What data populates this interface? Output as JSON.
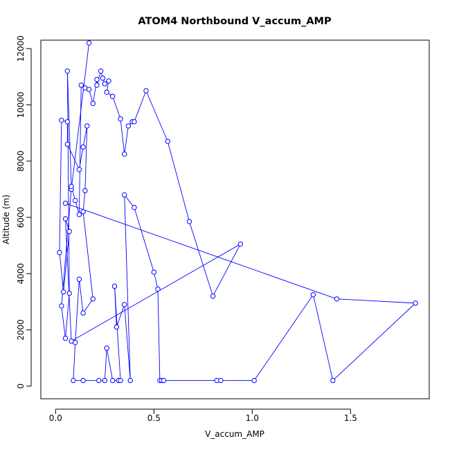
{
  "chart_data": {
    "type": "line",
    "title": "ATOM4 Northbound V_accum_AMP",
    "xlabel": "V_accum_AMP",
    "ylabel": "Altitude (m)",
    "xlim": [
      -0.075,
      1.9
    ],
    "ylim": [
      -450,
      12300
    ],
    "xticks": [
      0.0,
      0.5,
      1.0,
      1.5
    ],
    "xtick_labels": [
      "0.0",
      "0.5",
      "1.0",
      "1.5"
    ],
    "yticks": [
      0,
      2000,
      4000,
      6000,
      8000,
      10000,
      12000
    ],
    "ytick_labels": [
      "0",
      "2000",
      "4000",
      "6000",
      "8000",
      "10000",
      "12000"
    ],
    "marker": "open-circle",
    "series": [
      {
        "color": "#0000ff",
        "points": [
          [
            0.17,
            12200
          ],
          [
            0.08,
            7000
          ],
          [
            0.03,
            2850
          ],
          [
            0.05,
            1700
          ],
          [
            0.07,
            3300
          ],
          [
            0.06,
            11200
          ],
          [
            0.08,
            7100
          ],
          [
            0.1,
            6600
          ],
          [
            0.12,
            6100
          ],
          [
            0.13,
            10700
          ],
          [
            0.15,
            10600
          ],
          [
            0.17,
            10550
          ],
          [
            0.19,
            10050
          ],
          [
            0.21,
            10900
          ],
          [
            0.21,
            10700
          ],
          [
            0.23,
            11200
          ],
          [
            0.24,
            10950
          ],
          [
            0.25,
            10750
          ],
          [
            0.27,
            10850
          ],
          [
            0.26,
            10450
          ],
          [
            0.29,
            10300
          ],
          [
            0.33,
            9500
          ],
          [
            0.35,
            8250
          ],
          [
            0.37,
            9250
          ],
          [
            0.39,
            9400
          ],
          [
            0.4,
            9400
          ],
          [
            0.46,
            10500
          ],
          [
            0.57,
            8700
          ],
          [
            0.68,
            5850
          ],
          [
            0.8,
            3200
          ],
          [
            0.94,
            5050
          ],
          [
            0.08,
            1600
          ],
          [
            0.05,
            5950
          ],
          [
            0.07,
            5500
          ],
          [
            0.04,
            3350
          ],
          [
            0.02,
            4750
          ],
          [
            0.03,
            9450
          ],
          [
            0.06,
            9400
          ],
          [
            0.06,
            8600
          ],
          [
            0.12,
            7700
          ],
          [
            0.14,
            8500
          ],
          [
            0.16,
            9250
          ],
          [
            0.15,
            6950
          ],
          [
            0.14,
            6200
          ],
          [
            0.19,
            3100
          ],
          [
            0.14,
            2600
          ],
          [
            0.12,
            3800
          ],
          [
            0.1,
            1550
          ],
          [
            0.09,
            200
          ],
          [
            0.14,
            200
          ],
          [
            0.22,
            200
          ],
          [
            0.25,
            200
          ],
          [
            0.26,
            1350
          ],
          [
            0.29,
            200
          ],
          [
            0.32,
            200
          ],
          [
            0.33,
            200
          ],
          [
            0.3,
            3550
          ],
          [
            0.31,
            2100
          ],
          [
            0.35,
            2900
          ],
          [
            0.38,
            200
          ],
          [
            0.35,
            6800
          ],
          [
            0.4,
            6350
          ],
          [
            0.5,
            4050
          ],
          [
            0.52,
            3450
          ],
          [
            0.53,
            200
          ],
          [
            0.54,
            200
          ],
          [
            0.55,
            200
          ],
          [
            0.82,
            200
          ],
          [
            0.84,
            200
          ],
          [
            1.01,
            200
          ],
          [
            1.31,
            3250
          ],
          [
            1.41,
            200
          ],
          [
            1.83,
            2950
          ],
          [
            1.43,
            3100
          ],
          [
            0.05,
            6500
          ]
        ]
      }
    ]
  }
}
